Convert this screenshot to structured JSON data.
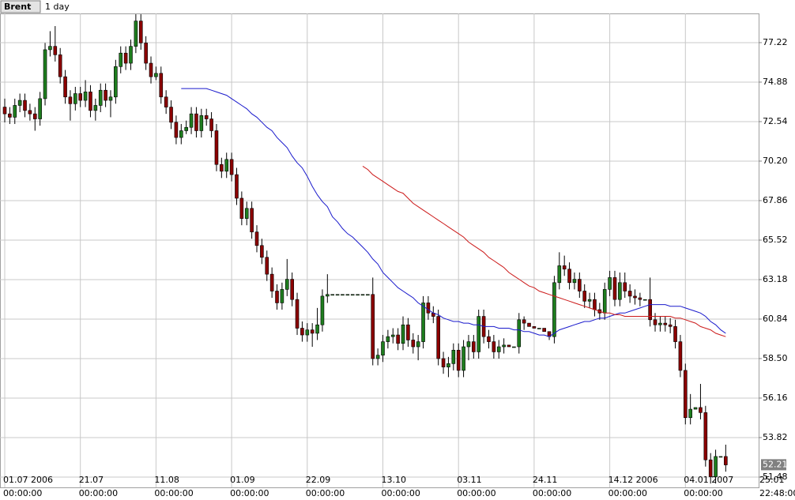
{
  "chart_data": {
    "type": "candlestick",
    "symbol": "Brent",
    "interval": "1 day",
    "last_price": 52.21,
    "up_color": "#1e7d1e",
    "down_color": "#8b0000",
    "grid": true,
    "ylim": [
      50.87,
      78.95
    ],
    "yticks": [
      {
        "value": 77.22,
        "label": "77.22"
      },
      {
        "value": 74.88,
        "label": "74.88"
      },
      {
        "value": 72.54,
        "label": "72.54"
      },
      {
        "value": 70.2,
        "label": "70.20"
      },
      {
        "value": 67.86,
        "label": "67.86"
      },
      {
        "value": 65.52,
        "label": "65.52"
      },
      {
        "value": 63.18,
        "label": "63.18"
      },
      {
        "value": 60.84,
        "label": "60.84"
      },
      {
        "value": 58.5,
        "label": "58.50"
      },
      {
        "value": 56.16,
        "label": "56.16"
      },
      {
        "value": 53.82,
        "label": "53.82"
      },
      {
        "value": 51.48,
        "label": "51.48"
      }
    ],
    "categories": [
      "01.07 2006",
      null,
      null,
      null,
      null,
      null,
      null,
      null,
      null,
      null,
      null,
      null,
      null,
      null,
      null,
      "21.07",
      null,
      null,
      null,
      null,
      null,
      null,
      null,
      null,
      null,
      null,
      null,
      null,
      null,
      null,
      "11.08",
      null,
      null,
      null,
      null,
      null,
      null,
      null,
      null,
      null,
      null,
      null,
      null,
      null,
      null,
      "01.09",
      null,
      null,
      null,
      null,
      null,
      null,
      null,
      null,
      null,
      null,
      null,
      null,
      null,
      null,
      "22.09",
      null,
      null,
      null,
      null,
      null,
      null,
      null,
      null,
      null,
      null,
      null,
      null,
      null,
      null,
      "13.10",
      null,
      null,
      null,
      null,
      null,
      null,
      null,
      null,
      null,
      null,
      null,
      null,
      null,
      null,
      "03.11",
      null,
      null,
      null,
      null,
      null,
      null,
      null,
      null,
      null,
      null,
      null,
      null,
      null,
      null,
      "24.11",
      null,
      null,
      null,
      null,
      null,
      null,
      null,
      null,
      null,
      null,
      null,
      null,
      null,
      null,
      "14.12 2006",
      null,
      null,
      null,
      null,
      null,
      null,
      null,
      null,
      null,
      null,
      null,
      null,
      null,
      null,
      "04.01 2007",
      null,
      null,
      null,
      null,
      null,
      null,
      null,
      null,
      null,
      null,
      null,
      null,
      null,
      null,
      "25.01"
    ],
    "category_times": [
      "00:00:00",
      null,
      null,
      null,
      null,
      null,
      null,
      null,
      null,
      null,
      null,
      null,
      null,
      null,
      null,
      "00:00:00",
      null,
      null,
      null,
      null,
      null,
      null,
      null,
      null,
      null,
      null,
      null,
      null,
      null,
      null,
      "00:00:00",
      null,
      null,
      null,
      null,
      null,
      null,
      null,
      null,
      null,
      null,
      null,
      null,
      null,
      null,
      "00:00:00",
      null,
      null,
      null,
      null,
      null,
      null,
      null,
      null,
      null,
      null,
      null,
      null,
      null,
      null,
      "00:00:00",
      null,
      null,
      null,
      null,
      null,
      null,
      null,
      null,
      null,
      null,
      null,
      null,
      null,
      null,
      "00:00:00",
      null,
      null,
      null,
      null,
      null,
      null,
      null,
      null,
      null,
      null,
      null,
      null,
      null,
      null,
      "00:00:00",
      null,
      null,
      null,
      null,
      null,
      null,
      null,
      null,
      null,
      null,
      null,
      null,
      null,
      null,
      "00:00:00",
      null,
      null,
      null,
      null,
      null,
      null,
      null,
      null,
      null,
      null,
      null,
      null,
      null,
      null,
      "00:00:00",
      null,
      null,
      null,
      null,
      null,
      null,
      null,
      null,
      null,
      null,
      null,
      null,
      null,
      null,
      "00:00:00",
      null,
      null,
      null,
      null,
      null,
      null,
      null,
      null,
      null,
      null,
      null,
      null,
      null,
      null,
      "22:48:00"
    ],
    "open": [
      73.4,
      73.0,
      72.8,
      73.5,
      73.8,
      73.2,
      73.0,
      72.7,
      73.9,
      76.8,
      77.0,
      76.5,
      75.2,
      74.0,
      73.6,
      74.2,
      73.8,
      74.3,
      73.2,
      73.5,
      74.4,
      73.8,
      74.0,
      75.8,
      76.6,
      76.0,
      77.0,
      78.5,
      77.2,
      76.0,
      75.2,
      75.4,
      74.0,
      73.4,
      72.5,
      71.6,
      72.0,
      72.2,
      73.0,
      72.0,
      72.9,
      72.7,
      72.0,
      70.0,
      69.6,
      70.3,
      69.4,
      68.0,
      66.8,
      67.4,
      66.0,
      65.2,
      64.5,
      63.5,
      62.5,
      61.8,
      62.6,
      63.2,
      62.0,
      60.3,
      59.9,
      60.2,
      60.0,
      60.5,
      62.2,
      62.3,
      62.3,
      62.3,
      62.3,
      62.3,
      62.3,
      62.3,
      62.3,
      62.3,
      58.5,
      58.7,
      59.5,
      59.8,
      59.9,
      59.4,
      60.5,
      59.6,
      59.2,
      59.5,
      61.8,
      61.2,
      61.0,
      58.5,
      58.0,
      58.2,
      59.0,
      57.8,
      59.2,
      59.5,
      58.9,
      61.0,
      59.8,
      59.5,
      58.9,
      59.2,
      59.3,
      59.2,
      59.2,
      60.8,
      60.6,
      60.4,
      60.3,
      60.3,
      60.1,
      59.8,
      63.0,
      64.0,
      63.8,
      63.0,
      63.2,
      62.5,
      61.9,
      62.0,
      61.4,
      61.2,
      62.6,
      63.3,
      62.0,
      63.0,
      62.5,
      62.2,
      62.1,
      62.0,
      62.0,
      60.8,
      60.5,
      60.6,
      60.5,
      60.4,
      59.5,
      57.8,
      55.0,
      55.5,
      55.6,
      55.3,
      52.5,
      51.5,
      52.7,
      52.7,
      null,
      null,
      null,
      null,
      null,
      null,
      null
    ],
    "high": [
      73.9,
      73.4,
      73.9,
      74.2,
      74.2,
      73.6,
      73.4,
      74.3,
      77.2,
      77.9,
      78.2,
      76.9,
      75.6,
      74.4,
      74.6,
      74.6,
      75.0,
      74.7,
      73.9,
      74.8,
      74.8,
      74.4,
      76.2,
      77.0,
      77.0,
      77.4,
      78.9,
      78.9,
      77.6,
      76.4,
      75.8,
      75.8,
      74.4,
      73.8,
      72.9,
      72.4,
      72.6,
      73.4,
      73.4,
      73.3,
      73.3,
      73.1,
      72.4,
      70.4,
      70.7,
      70.7,
      69.8,
      68.4,
      67.8,
      67.8,
      66.4,
      65.6,
      64.9,
      63.9,
      62.9,
      63.0,
      64.4,
      63.6,
      62.4,
      60.7,
      60.6,
      60.6,
      61.5,
      62.6,
      63.5,
      62.3,
      62.3,
      62.3,
      62.3,
      62.3,
      62.3,
      62.3,
      62.3,
      63.3,
      59.1,
      59.9,
      60.2,
      60.3,
      60.3,
      61.0,
      60.9,
      60.0,
      59.9,
      62.2,
      62.2,
      61.6,
      61.4,
      58.9,
      58.6,
      59.4,
      59.4,
      59.6,
      59.9,
      59.9,
      61.4,
      61.4,
      60.2,
      59.9,
      59.6,
      59.7,
      59.3,
      59.2,
      61.2,
      61.0,
      60.6,
      60.4,
      60.3,
      60.3,
      60.1,
      63.4,
      64.8,
      64.6,
      64.2,
      63.6,
      63.6,
      62.9,
      62.4,
      62.4,
      61.8,
      63.0,
      63.7,
      63.7,
      63.6,
      63.6,
      62.9,
      62.6,
      62.4,
      62.0,
      63.3,
      61.2,
      61.0,
      61.0,
      60.9,
      60.8,
      59.9,
      58.2,
      56.4,
      55.6,
      57.0,
      55.7,
      52.9,
      53.1,
      52.7,
      53.4,
      null,
      null,
      null,
      null,
      null,
      null,
      null
    ],
    "low": [
      72.5,
      72.4,
      72.4,
      73.1,
      72.8,
      72.6,
      72.0,
      72.3,
      73.5,
      76.4,
      76.1,
      74.8,
      73.6,
      72.6,
      73.2,
      73.4,
      73.4,
      72.8,
      72.6,
      73.1,
      73.4,
      72.8,
      73.6,
      75.4,
      75.6,
      75.6,
      76.6,
      76.8,
      75.6,
      74.8,
      75.0,
      73.6,
      73.0,
      72.1,
      71.2,
      71.2,
      71.8,
      71.8,
      71.6,
      71.6,
      72.3,
      71.6,
      69.6,
      69.2,
      69.2,
      69.0,
      67.6,
      66.4,
      66.4,
      65.6,
      64.8,
      64.1,
      63.1,
      62.1,
      61.4,
      61.4,
      62.2,
      61.6,
      59.9,
      59.5,
      59.5,
      59.2,
      59.6,
      60.1,
      61.8,
      62.3,
      62.3,
      62.3,
      62.3,
      62.3,
      62.3,
      62.3,
      62.3,
      58.1,
      58.1,
      58.3,
      59.1,
      59.4,
      59.0,
      59.0,
      59.2,
      58.8,
      58.4,
      59.1,
      60.8,
      60.6,
      58.1,
      57.6,
      57.4,
      57.8,
      57.4,
      57.4,
      58.4,
      58.5,
      58.5,
      59.4,
      59.1,
      58.5,
      58.5,
      58.8,
      59.2,
      59.2,
      58.8,
      60.2,
      60.4,
      60.3,
      60.3,
      60.1,
      59.6,
      59.4,
      62.6,
      63.4,
      62.6,
      62.6,
      62.1,
      61.5,
      61.5,
      61.0,
      60.8,
      60.8,
      62.2,
      61.6,
      61.6,
      62.1,
      61.8,
      61.7,
      61.6,
      62.0,
      60.4,
      60.1,
      60.1,
      60.1,
      60.0,
      59.1,
      57.4,
      54.6,
      54.6,
      55.5,
      54.9,
      52.1,
      51.1,
      51.1,
      52.7,
      51.8,
      null,
      null,
      null,
      null,
      null,
      null,
      null
    ],
    "close": [
      73.0,
      72.8,
      73.5,
      73.8,
      73.2,
      73.0,
      72.7,
      73.9,
      76.8,
      77.0,
      76.5,
      75.2,
      74.0,
      73.6,
      74.2,
      73.8,
      74.3,
      73.2,
      73.5,
      74.4,
      73.8,
      74.0,
      75.8,
      76.6,
      76.0,
      77.0,
      78.5,
      77.2,
      76.0,
      75.2,
      75.4,
      74.0,
      73.4,
      72.5,
      71.6,
      72.0,
      72.2,
      73.0,
      72.0,
      72.9,
      72.7,
      72.0,
      70.0,
      69.6,
      70.3,
      69.4,
      68.0,
      66.8,
      67.4,
      66.0,
      65.2,
      64.5,
      63.5,
      62.5,
      61.8,
      62.6,
      63.2,
      62.0,
      60.3,
      59.9,
      60.2,
      60.0,
      60.5,
      62.2,
      62.3,
      62.3,
      62.3,
      62.3,
      62.3,
      62.3,
      62.3,
      62.3,
      62.3,
      58.5,
      58.7,
      59.5,
      59.8,
      59.9,
      59.4,
      60.5,
      59.6,
      59.2,
      59.5,
      61.8,
      61.2,
      61.0,
      58.5,
      58.0,
      58.2,
      59.0,
      57.8,
      59.2,
      59.5,
      58.9,
      61.0,
      59.8,
      59.5,
      58.9,
      59.2,
      59.3,
      59.2,
      59.2,
      60.8,
      60.6,
      60.4,
      60.3,
      60.3,
      60.1,
      59.8,
      63.0,
      64.0,
      63.8,
      63.0,
      63.2,
      62.5,
      61.9,
      62.0,
      61.4,
      61.2,
      62.6,
      63.3,
      62.0,
      63.0,
      62.5,
      62.2,
      62.1,
      62.0,
      62.0,
      60.8,
      60.5,
      60.6,
      60.5,
      60.4,
      59.5,
      57.8,
      55.0,
      55.5,
      55.6,
      55.3,
      52.5,
      51.5,
      52.7,
      52.7,
      52.2,
      null,
      null,
      null,
      null,
      null,
      null,
      null
    ],
    "moving_averages": [
      {
        "color": "#1a1acc",
        "values": [
          null,
          null,
          null,
          null,
          null,
          null,
          null,
          null,
          null,
          null,
          null,
          null,
          null,
          null,
          null,
          null,
          null,
          null,
          null,
          null,
          null,
          null,
          null,
          null,
          null,
          null,
          null,
          null,
          null,
          null,
          null,
          null,
          null,
          null,
          null,
          74.5,
          74.5,
          74.5,
          74.5,
          74.5,
          74.5,
          74.4,
          74.3,
          74.2,
          74.1,
          73.9,
          73.7,
          73.5,
          73.3,
          73.0,
          72.8,
          72.5,
          72.2,
          72.0,
          71.6,
          71.3,
          71.0,
          70.5,
          70.1,
          69.8,
          69.3,
          68.7,
          68.2,
          67.8,
          67.5,
          66.9,
          66.6,
          66.2,
          65.9,
          65.7,
          65.4,
          65.1,
          64.8,
          64.4,
          64.1,
          63.6,
          63.3,
          63.0,
          62.7,
          62.5,
          62.3,
          62.1,
          61.8,
          61.6,
          61.4,
          61.2,
          61.1,
          60.9,
          60.8,
          60.7,
          60.7,
          60.6,
          60.6,
          60.5,
          60.5,
          60.4,
          60.4,
          60.4,
          60.3,
          60.3,
          60.3,
          60.2,
          60.2,
          60.1,
          60.1,
          60.0,
          59.9,
          59.9,
          59.8,
          60.0,
          60.2,
          60.3,
          60.4,
          60.5,
          60.6,
          60.7,
          60.7,
          60.8,
          60.9,
          60.9,
          61.0,
          61.1,
          61.2,
          61.2,
          61.3,
          61.4,
          61.5,
          61.6,
          61.7,
          61.7,
          61.7,
          61.7,
          61.6,
          61.6,
          61.6,
          61.5,
          61.4,
          61.3,
          61.2,
          61.0,
          60.7,
          60.5,
          60.2,
          60.0,
          null,
          null,
          null,
          null,
          null,
          null,
          null
        ]
      },
      {
        "color": "#cc1a1a",
        "values": [
          null,
          null,
          null,
          null,
          null,
          null,
          null,
          null,
          null,
          null,
          null,
          null,
          null,
          null,
          null,
          null,
          null,
          null,
          null,
          null,
          null,
          null,
          null,
          null,
          null,
          null,
          null,
          null,
          null,
          null,
          null,
          null,
          null,
          null,
          null,
          null,
          null,
          null,
          null,
          null,
          null,
          null,
          null,
          null,
          null,
          null,
          null,
          null,
          null,
          null,
          null,
          null,
          null,
          null,
          null,
          null,
          null,
          null,
          null,
          null,
          null,
          null,
          null,
          null,
          null,
          null,
          null,
          null,
          null,
          null,
          null,
          69.9,
          69.7,
          69.4,
          69.2,
          69.0,
          68.8,
          68.6,
          68.4,
          68.3,
          68.0,
          67.7,
          67.5,
          67.3,
          67.1,
          66.9,
          66.7,
          66.5,
          66.3,
          66.1,
          65.9,
          65.7,
          65.4,
          65.2,
          65.0,
          64.8,
          64.5,
          64.3,
          64.1,
          63.9,
          63.6,
          63.4,
          63.2,
          63.0,
          62.8,
          62.7,
          62.5,
          62.4,
          62.3,
          62.2,
          62.1,
          62.0,
          61.9,
          61.8,
          61.7,
          61.6,
          61.5,
          61.4,
          61.3,
          61.2,
          61.2,
          61.1,
          61.1,
          61.0,
          61.0,
          61.0,
          61.0,
          61.0,
          61.0,
          61.0,
          61.0,
          61.0,
          61.0,
          60.9,
          60.9,
          60.8,
          60.7,
          60.6,
          60.4,
          60.3,
          60.2,
          60.0,
          59.9,
          59.8,
          null,
          null,
          null,
          null,
          null,
          null,
          null
        ]
      }
    ]
  }
}
